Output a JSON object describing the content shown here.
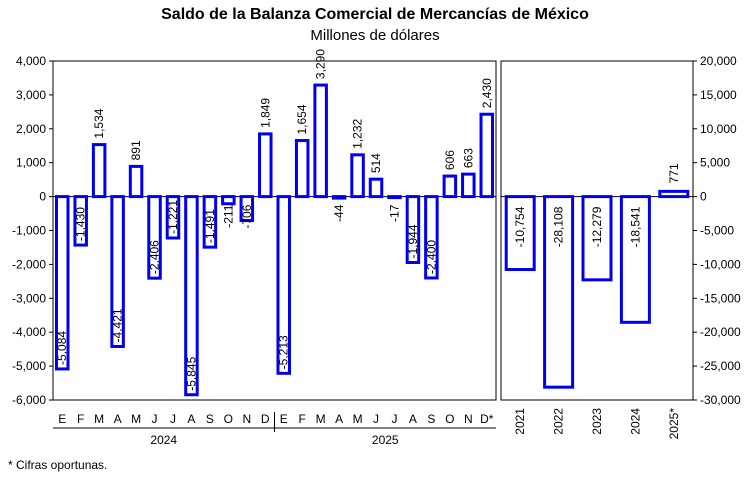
{
  "chart_data": [
    {
      "type": "bar",
      "title": "Saldo de la Balanza Comercial de Mercancías de México",
      "subtitle": "Millones de dólares",
      "ylim": [
        -6000,
        4000
      ],
      "yticks": [
        "-6,000",
        "-5,000",
        "-4,000",
        "-3,000",
        "-2,000",
        "-1,000",
        "0",
        "1,000",
        "2,000",
        "3,000",
        "4,000"
      ],
      "categories": [
        "E",
        "F",
        "M",
        "A",
        "M",
        "J",
        "J",
        "A",
        "S",
        "O",
        "N",
        "D",
        "E",
        "F",
        "M",
        "A",
        "M",
        "J",
        "J",
        "A",
        "S",
        "O",
        "N",
        "D*"
      ],
      "values": [
        -5084,
        -1430,
        1534,
        -4421,
        891,
        -2406,
        -1221,
        -5845,
        -1491,
        -211,
        -706,
        1849,
        -5213,
        1654,
        3290,
        -44,
        1232,
        514,
        -17,
        -1944,
        -2400,
        606,
        663,
        2430
      ],
      "labels": [
        "-5,084",
        "-1,430",
        "1,534",
        "-4,421",
        "891",
        "-2,406",
        "-1,221",
        "-5,845",
        "-1,491",
        "-211",
        "-706",
        "1,849",
        "-5,213",
        "1,654",
        "3,290",
        "-44",
        "1,232",
        "514",
        "-17",
        "-1,944",
        "-2,400",
        "606",
        "663",
        "2,430"
      ],
      "groups": [
        {
          "label": "2024",
          "start": 0,
          "end": 11
        },
        {
          "label": "2025",
          "start": 12,
          "end": 23
        }
      ]
    },
    {
      "type": "bar",
      "ylim": [
        -30000,
        20000
      ],
      "yticks": [
        "-30,000",
        "-25,000",
        "-20,000",
        "-15,000",
        "-10,000",
        "-5,000",
        "0",
        "5,000",
        "10,000",
        "15,000",
        "20,000"
      ],
      "categories": [
        "2021",
        "2022",
        "2023",
        "2024",
        "2025*"
      ],
      "values": [
        -10754,
        -28108,
        -12279,
        -18541,
        771
      ],
      "labels": [
        "-10,754",
        "-28,108",
        "-12,279",
        "-18,541",
        "771"
      ]
    }
  ],
  "footnote": "*  Cifras oportunas.",
  "colors": {
    "bar_fill": "#ffffff",
    "bar_stroke": "#0000ee"
  }
}
